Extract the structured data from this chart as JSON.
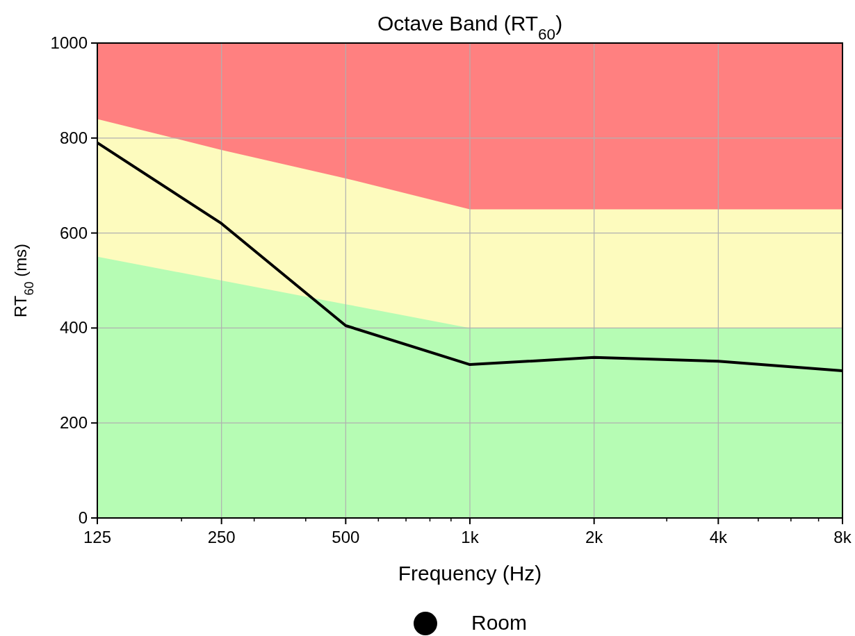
{
  "chart_data": {
    "type": "line",
    "title": "Octave Band (RT$_{60}$)",
    "xlabel": "Frequency (Hz)",
    "ylabel": "RT$_{60}$ (ms)",
    "log": "x",
    "x": [
      125,
      250,
      500,
      1000,
      2000,
      4000,
      8000
    ],
    "xlim": [
      125,
      8000
    ],
    "ylim": [
      0,
      1000
    ],
    "xticks": [
      125,
      250,
      500,
      {
        "value": 1000,
        "label": "1k"
      },
      {
        "value": 2000,
        "label": "2k"
      },
      {
        "value": 4000,
        "label": "4k"
      },
      {
        "value": 8000,
        "label": "8k"
      },
      {
        "value": 200,
        "label": null
      },
      {
        "value": 300,
        "label": null
      },
      {
        "value": 400,
        "label": null
      },
      {
        "value": 600,
        "label": null
      },
      {
        "value": 700,
        "label": null
      },
      {
        "value": 800,
        "label": null
      },
      {
        "value": 900,
        "label": null
      },
      {
        "value": 3000,
        "label": null
      },
      {
        "value": 5000,
        "label": null
      },
      {
        "value": 6000,
        "label": null
      },
      {
        "value": 7000,
        "label": null
      }
    ],
    "yticks": [
      0,
      200,
      400,
      600,
      800,
      1000
    ],
    "grid": true,
    "legend": "bottom",
    "series": [
      {
        "type": "area",
        "color": "#ff8080",
        "values": [
          1000,
          1000,
          1000,
          1000,
          1000,
          1000,
          1000
        ]
      },
      {
        "type": "area",
        "color": "#fdfbbe",
        "values": [
          840,
          775,
          715,
          650,
          650,
          650,
          650
        ]
      },
      {
        "type": "area",
        "color": "#b6fcb4",
        "values": [
          550,
          500,
          450,
          400,
          400,
          400,
          400
        ]
      },
      {
        "name": "Room",
        "color": "#000000",
        "values": [
          790,
          620,
          405,
          323,
          338,
          330,
          310
        ]
      }
    ]
  }
}
